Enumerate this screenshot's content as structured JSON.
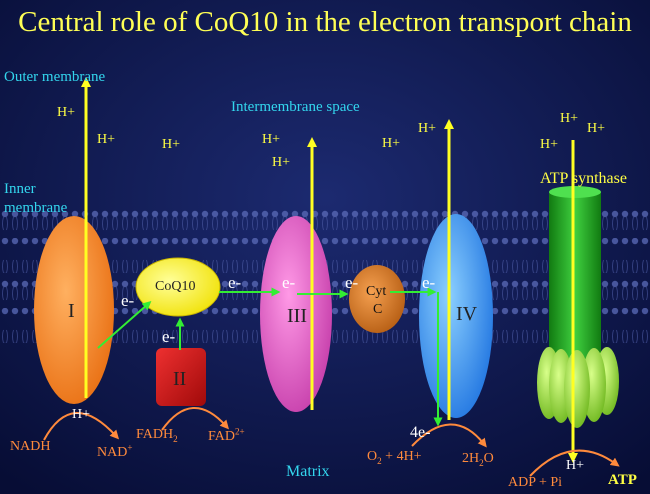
{
  "title": "Central role of CoQ10 in the electron transport chain",
  "regions": {
    "outer_membrane": "Outer membrane",
    "intermembrane_space": "Intermembrane space",
    "inner_membrane_line1": "Inner",
    "inner_membrane_line2": "membrane",
    "matrix": "Matrix"
  },
  "complexes": {
    "c1": "I",
    "c2": "II",
    "c3": "III",
    "c4": "IV",
    "coq10": "CoQ10",
    "cytc_line1": "Cyt",
    "cytc_line2": "C",
    "atp_synthase": "ATP synthase"
  },
  "protons": {
    "label": "H+"
  },
  "electron": "e-",
  "electron_pair": "4e-",
  "molecules": {
    "nadh": "NADH",
    "nad_base": "NAD",
    "nad_sup": "+",
    "fadh_base": "FADH",
    "fadh_sub": "2",
    "fad_base": "FAD",
    "fad_sup": "2+",
    "o2_o": "O",
    "o2_sub": "2",
    "o2_rest": " + 4H+",
    "water_pre": "2H",
    "water_sub": "2",
    "water_post": "O",
    "adp": "ADP + Pi",
    "atp": "ATP"
  },
  "colors": {
    "background": "#0b1448",
    "title": "#ffff55",
    "cyan_label": "#33d6ee",
    "proton_arrow": "#ffff22",
    "electron_arrow": "#33ee33",
    "complex1": "#ff8c2a",
    "complex2": "#cc1818",
    "complex3": "#ee55cc",
    "complex4": "#3399ff",
    "coq10": "#ffff00",
    "cytc": "#d8731a",
    "atp_synthase": "#22aa22",
    "orange_label": "#ff8a3c"
  }
}
